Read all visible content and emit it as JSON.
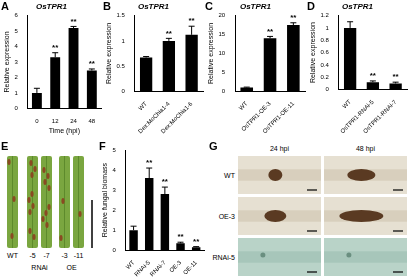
{
  "chart_data": [
    {
      "panel": "A",
      "type": "bar",
      "title": "OsTPR1",
      "y_label": "Relative expression",
      "x_label": "Time (hpi)",
      "categories": [
        "0",
        "12",
        "24",
        "48"
      ],
      "values": [
        1.0,
        3.3,
        5.2,
        2.45
      ],
      "errors": [
        0.3,
        0.3,
        0.1,
        0.1
      ],
      "significance": [
        null,
        "**",
        "**",
        "**"
      ],
      "color": "#000000",
      "ylim": [
        0,
        6
      ],
      "yticks": [
        0,
        1,
        2,
        3,
        4,
        5,
        6
      ],
      "grid": false
    },
    {
      "panel": "B",
      "type": "bar",
      "title": "OsTPR1",
      "y_label": "Relative expression",
      "categories": [
        "WT",
        "Dex:MoChia1-4",
        "Dex:MoChia1-6"
      ],
      "values": [
        0.67,
        1.0,
        1.12
      ],
      "errors": [
        0.02,
        0.05,
        0.17
      ],
      "significance": [
        null,
        "**",
        "**"
      ],
      "color": "#000000",
      "ylim": [
        0,
        1.5
      ],
      "yticks": [
        0,
        0.5,
        1,
        1.5
      ],
      "grid": false
    },
    {
      "panel": "C",
      "type": "bar",
      "title": "OsTPR1",
      "y_label": "Relative expression",
      "categories": [
        "WT",
        "OsTPR1-OE-3",
        "OsTPR1-OE-11"
      ],
      "values": [
        1.0,
        14.0,
        17.5
      ],
      "errors": [
        0.1,
        0.5,
        0.6
      ],
      "significance": [
        null,
        "**",
        "**"
      ],
      "color": "#000000",
      "ylim": [
        0,
        20
      ],
      "yticks": [
        0,
        5,
        10,
        15,
        20
      ],
      "grid": false
    },
    {
      "panel": "D",
      "type": "bar",
      "title": "OsTPR1",
      "y_label": "Relative expression",
      "categories": [
        "WT",
        "OsTPR1-RNAi-5",
        "OsTPR1-RNAi-7"
      ],
      "values": [
        1.0,
        0.12,
        0.1
      ],
      "errors": [
        0.1,
        0.02,
        0.02
      ],
      "significance": [
        null,
        "**",
        "**"
      ],
      "color": "#000000",
      "ylim": [
        0,
        1.2
      ],
      "yticks": [
        0,
        0.2,
        0.4,
        0.6,
        0.8,
        1,
        1.2
      ],
      "grid": false
    },
    {
      "panel": "F",
      "type": "bar",
      "y_label": "Relative fungal biomass",
      "categories": [
        "WT",
        "RNAi-5",
        "RNAi-7",
        "OE-3",
        "OE-11"
      ],
      "values": [
        1.0,
        3.6,
        2.8,
        0.35,
        0.15
      ],
      "errors": [
        0.2,
        0.5,
        0.35,
        0.05,
        0.03
      ],
      "significance": [
        null,
        "**",
        "**",
        "**",
        "**"
      ],
      "color": "#000000",
      "ylim": [
        0,
        5
      ],
      "yticks": [
        0,
        1,
        2,
        3,
        4,
        5
      ],
      "grid": false
    }
  ],
  "panel_E": {
    "panel": "E",
    "leaves": [
      "WT",
      "-5",
      "-7",
      "-3",
      "-11"
    ],
    "group_labels": [
      "RNAi",
      "OE"
    ]
  },
  "panel_G": {
    "panel": "G",
    "columns": [
      "24 hpi",
      "48 hpi"
    ],
    "rows": [
      "WT",
      "OE-3",
      "RNAi-5"
    ]
  }
}
